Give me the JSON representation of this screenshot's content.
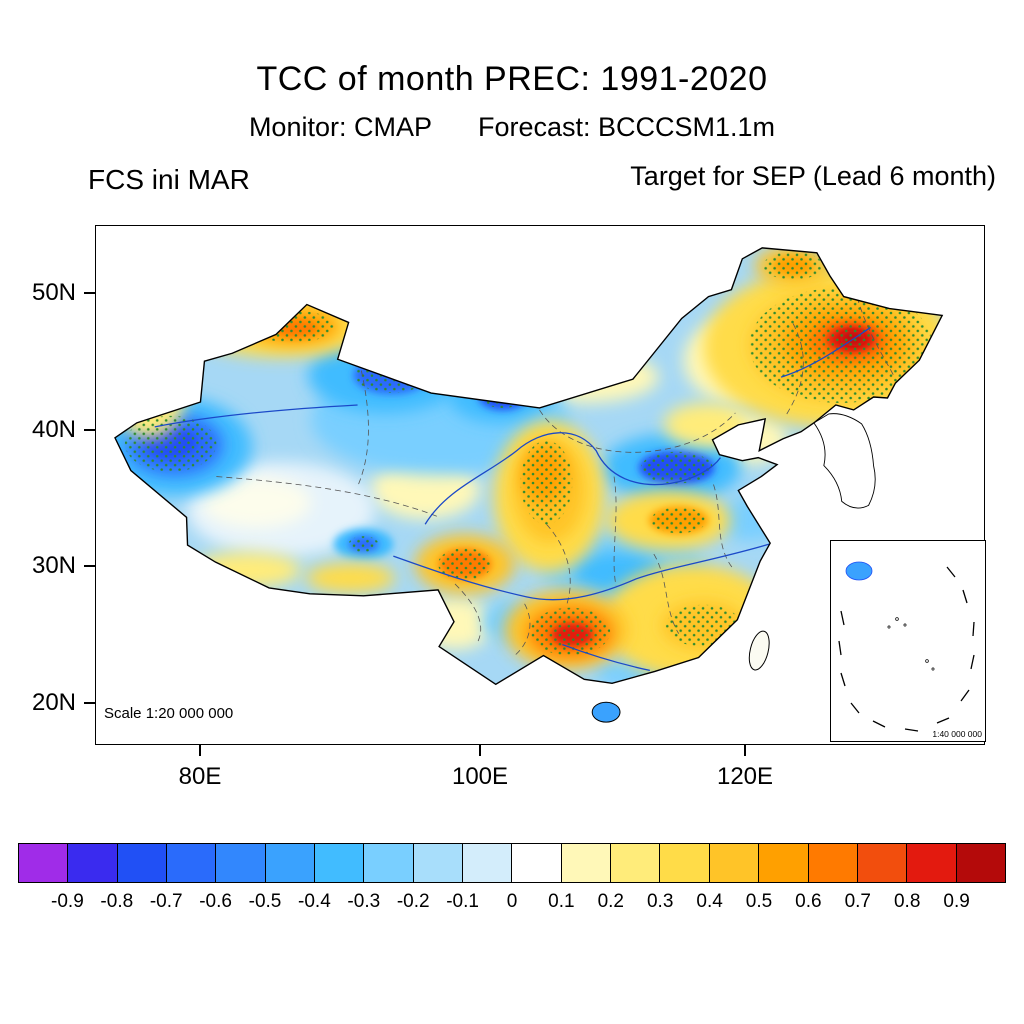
{
  "header": {
    "title": "TCC of month PREC: 1991-2020",
    "monitor": "Monitor: CMAP",
    "forecast": "Forecast: BCCCSM1.1m",
    "init_label": "FCS ini MAR",
    "target_label": "Target for SEP (Lead 6 month)"
  },
  "map": {
    "y_ticks": [
      "50N",
      "40N",
      "30N",
      "20N"
    ],
    "x_ticks": [
      "80E",
      "100E",
      "120E"
    ],
    "scale_note": "Scale 1:20 000 000",
    "inset_scale_note": "1:40 000 000"
  },
  "chart_data": {
    "type": "heatmap",
    "title": "TCC of month PREC: 1991-2020",
    "variable": "Temporal correlation coefficient (TCC) of monthly precipitation",
    "monitor": "CMAP",
    "forecast_model": "BCCCSM1.1m",
    "init_month": "MAR",
    "target_month": "SEP",
    "lead_months": 6,
    "region": "China",
    "x_axis": {
      "ticks": [
        "80E",
        "100E",
        "120E"
      ],
      "range_deg_east": [
        73,
        137
      ]
    },
    "y_axis": {
      "ticks": [
        "20N",
        "30N",
        "40N",
        "50N"
      ],
      "range_deg_north": [
        17,
        55
      ]
    },
    "colorbar": {
      "tick_labels": [
        "-0.9",
        "-0.8",
        "-0.7",
        "-0.6",
        "-0.5",
        "-0.4",
        "-0.3",
        "-0.2",
        "-0.1",
        "0",
        "0.1",
        "0.2",
        "0.3",
        "0.4",
        "0.5",
        "0.6",
        "0.7",
        "0.8",
        "0.9"
      ],
      "colors": [
        "#A02CE8",
        "#3A2BEF",
        "#2150F5",
        "#2A6BFB",
        "#3287FD",
        "#3AA2FE",
        "#41BCFF",
        "#79CFFF",
        "#A8DEFB",
        "#D3EDFB",
        "#FFFFFF",
        "#FFF8B8",
        "#FFEC7A",
        "#FFDC48",
        "#FFC428",
        "#FFA000",
        "#FF7A00",
        "#F24E0D",
        "#E31A0F",
        "#B40A0A"
      ]
    },
    "stipple_color": "#2E8B2E",
    "regions": [
      {
        "area": "western Xinjiang (75-83E, 36-41N)",
        "tcc_range": [
          -0.7,
          -0.4
        ],
        "stippled": true
      },
      {
        "area": "northern Xinjiang / Altai (84-92E, 45-49N)",
        "tcc_range": [
          0.3,
          0.6
        ],
        "stippled": true
      },
      {
        "area": "Gobi / western Inner Mongolia (90-102E, 40-45N)",
        "tcc_range": [
          -0.7,
          -0.3
        ],
        "stippled": true
      },
      {
        "area": "central Tibetan Plateau (82-95E, 30-35N)",
        "tcc_range": [
          -0.2,
          0.1
        ],
        "stippled": false
      },
      {
        "area": "eastern Tibet / western Sichuan (98-103E, 29-32N)",
        "tcc_range": [
          0.4,
          0.7
        ],
        "stippled": true
      },
      {
        "area": "Gansu-Shaanxi corridor (103-109E, 32-38N)",
        "tcc_range": [
          0.3,
          0.5
        ],
        "stippled": true
      },
      {
        "area": "North China Plain (112-118E, 35-38N)",
        "tcc_range": [
          -0.7,
          -0.4
        ],
        "stippled": true
      },
      {
        "area": "Northeast China (122-132E, 42-49N)",
        "tcc_range": [
          0.5,
          0.9
        ],
        "stippled": true
      },
      {
        "area": "northern Greater Khingan (119-123E, 51-54N)",
        "tcc_range": [
          0.3,
          0.5
        ],
        "stippled": true
      },
      {
        "area": "Guizhou-Guangxi (104-110E, 23-27N)",
        "tcc_range": [
          0.5,
          0.8
        ],
        "stippled": true
      },
      {
        "area": "middle-lower Yangtze valley (108-115E, 28-32N)",
        "tcc_range": [
          -0.4,
          -0.2
        ],
        "stippled": false
      },
      {
        "area": "southeast coast (113-120E, 24-29N)",
        "tcc_range": [
          0.2,
          0.4
        ],
        "stippled": true
      },
      {
        "area": "Hainan Island",
        "tcc_range": [
          -0.4,
          -0.2
        ],
        "stippled": false
      }
    ]
  }
}
